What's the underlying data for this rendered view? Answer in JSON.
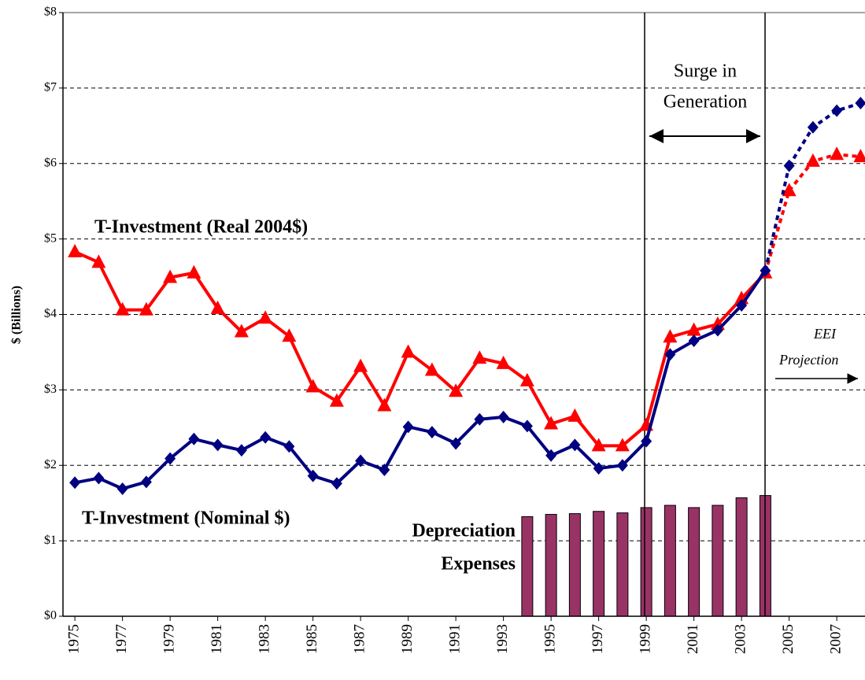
{
  "chart_data": {
    "type": "line",
    "y_label": "$ (Billions)",
    "x": [
      1975,
      1976,
      1977,
      1978,
      1979,
      1980,
      1981,
      1982,
      1983,
      1984,
      1985,
      1986,
      1987,
      1988,
      1989,
      1990,
      1991,
      1992,
      1993,
      1994,
      1995,
      1996,
      1997,
      1998,
      1999,
      2000,
      2001,
      2002,
      2003,
      2004
    ],
    "projection_x": [
      2005,
      2006,
      2007,
      2008
    ],
    "series": [
      {
        "name": "T-Investment (Real 2004$)",
        "color": "#ff0000",
        "marker": "triangle",
        "values": [
          4.83,
          4.69,
          4.06,
          4.06,
          4.49,
          4.55,
          4.08,
          3.77,
          3.95,
          3.71,
          3.04,
          2.85,
          3.31,
          2.79,
          3.5,
          3.26,
          2.98,
          3.42,
          3.35,
          3.12,
          2.55,
          2.65,
          2.26,
          2.26,
          2.53,
          3.7,
          3.79,
          3.87,
          4.21,
          4.55
        ],
        "projection_values": [
          5.64,
          6.03,
          6.12,
          6.09
        ]
      },
      {
        "name": "T-Investment (Nominal $)",
        "color": "#000080",
        "marker": "diamond",
        "values": [
          1.77,
          1.83,
          1.69,
          1.78,
          2.09,
          2.35,
          2.27,
          2.2,
          2.37,
          2.25,
          1.86,
          1.76,
          2.06,
          1.94,
          2.51,
          2.44,
          2.29,
          2.61,
          2.64,
          2.52,
          2.13,
          2.27,
          1.96,
          2.0,
          2.32,
          3.47,
          3.65,
          3.79,
          4.12,
          4.58
        ],
        "projection_values": [
          5.97,
          6.48,
          6.7,
          6.8
        ]
      }
    ],
    "bars": {
      "name_lines": [
        "Depreciation",
        "Expenses"
      ],
      "color": "#993366",
      "x": [
        1994,
        1995,
        1996,
        1997,
        1998,
        1999,
        2000,
        2001,
        2002,
        2003,
        2004
      ],
      "values": [
        1.32,
        1.35,
        1.36,
        1.39,
        1.37,
        1.44,
        1.47,
        1.44,
        1.47,
        1.57,
        1.6
      ]
    },
    "surge_label_lines": [
      "Surge in",
      "Generation"
    ],
    "projection_label_lines": [
      "EEI",
      "Projection"
    ],
    "xlim": [
      1974.5,
      2008.5
    ],
    "xticks": [
      1975,
      1977,
      1979,
      1981,
      1983,
      1985,
      1987,
      1989,
      1991,
      1993,
      1995,
      1997,
      1999,
      2001,
      2003,
      2005,
      2007
    ],
    "ylim": [
      0,
      8
    ],
    "yticks": [
      {
        "value": 0,
        "label": "$0"
      },
      {
        "value": 1,
        "label": "$1"
      },
      {
        "value": 2,
        "label": "$2"
      },
      {
        "value": 3,
        "label": "$3"
      },
      {
        "value": 4,
        "label": "$4"
      },
      {
        "value": 5,
        "label": "$5"
      },
      {
        "value": 6,
        "label": "$6"
      },
      {
        "value": 7,
        "label": "$7"
      },
      {
        "value": 8,
        "label": "$8"
      }
    ],
    "grid": true
  }
}
